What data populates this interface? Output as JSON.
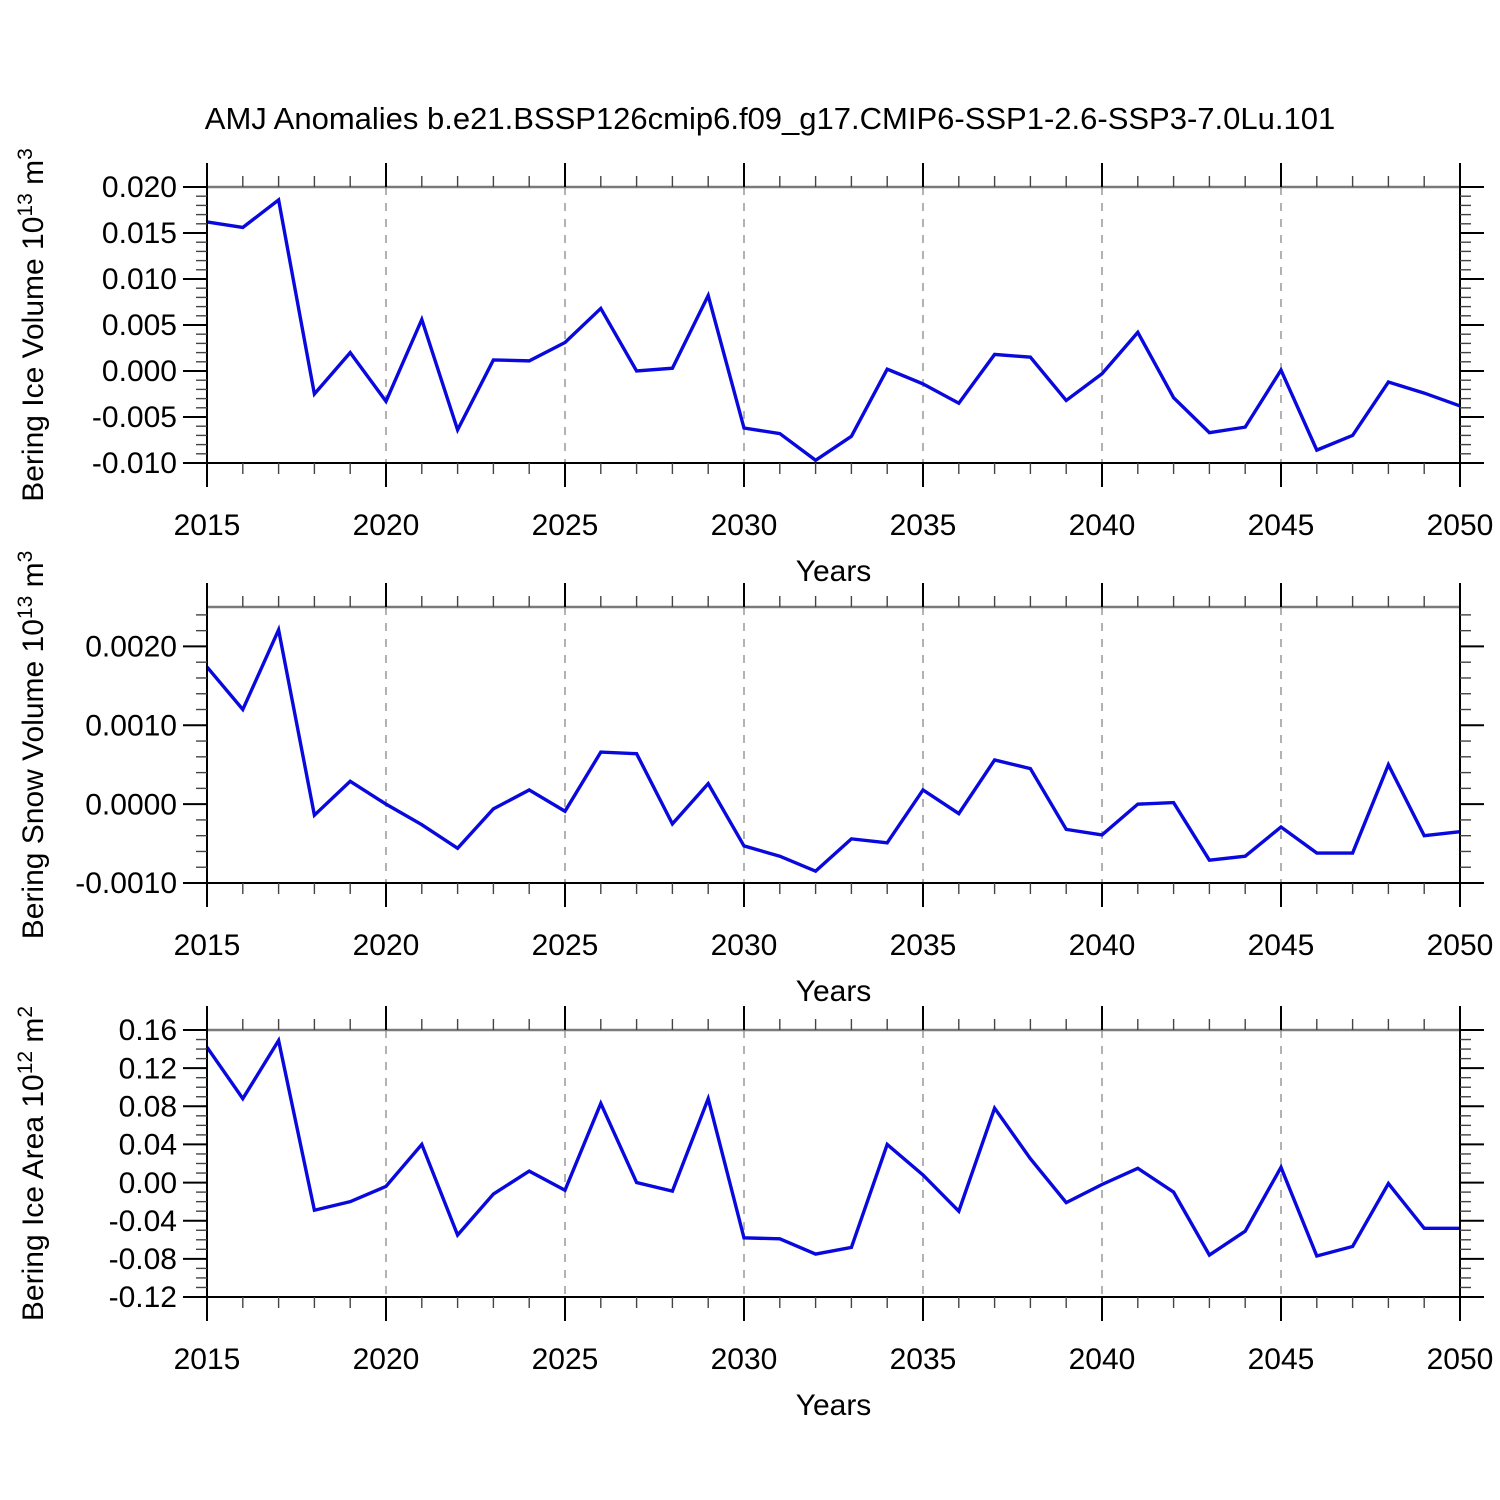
{
  "page": {
    "title": "AMJ Anomalies b.e21.BSSP126cmip6.f09_g17.CMIP6-SSP1-2.6-SSP3-7.0Lu.101",
    "background": "#ffffff"
  },
  "style": {
    "line_color": "#0909dd",
    "grid_color": "#999999",
    "frame_color": "#000000",
    "frame_top_color": "#7a7a7a",
    "minor_tick_color": "#444444",
    "text_color": "#000000"
  },
  "chart_data": [
    {
      "type": "line",
      "name": "bering-ice-volume",
      "ylabel_parts": [
        {
          "t": "Bering Ice Volume 10"
        },
        {
          "t": "13",
          "sup": true
        },
        {
          "t": " m"
        },
        {
          "t": "3",
          "sup": true
        }
      ],
      "xlabel": "Years",
      "xlim": [
        2015,
        2050
      ],
      "ylim": [
        -0.01,
        0.02
      ],
      "yticks": [
        0.02,
        0.015,
        0.01,
        0.005,
        0.0,
        -0.005,
        -0.01
      ],
      "ytick_labels": [
        "0.020",
        "0.015",
        "0.010",
        "0.005",
        "0.000",
        "-0.005",
        "-0.010"
      ],
      "yminor_step": 0.001,
      "xticks_major": [
        2015,
        2020,
        2025,
        2030,
        2035,
        2040,
        2045,
        2050
      ],
      "xtick_labels": [
        "2015",
        "2020",
        "2025",
        "2030",
        "2035",
        "2040",
        "2045",
        "2050"
      ],
      "xminor_step": 1,
      "grid_x": [
        2020,
        2025,
        2030,
        2035,
        2040,
        2045
      ],
      "x": [
        2015,
        2016,
        2017,
        2018,
        2019,
        2020,
        2021,
        2022,
        2023,
        2024,
        2025,
        2026,
        2027,
        2028,
        2029,
        2030,
        2031,
        2032,
        2033,
        2034,
        2035,
        2036,
        2037,
        2038,
        2039,
        2040,
        2041,
        2042,
        2043,
        2044,
        2045,
        2046,
        2047,
        2048,
        2049,
        2050
      ],
      "values": [
        0.0162,
        0.0156,
        0.0186,
        -0.0025,
        0.002,
        -0.0033,
        0.0056,
        -0.0064,
        0.0012,
        0.0011,
        0.0031,
        0.0068,
        0.0,
        0.0003,
        0.0082,
        -0.0062,
        -0.0068,
        -0.0097,
        -0.0071,
        0.0002,
        -0.0014,
        -0.0035,
        0.0018,
        0.0015,
        -0.0032,
        -0.0003,
        0.0042,
        -0.0029,
        -0.0067,
        -0.0061,
        0.0001,
        -0.0086,
        -0.007,
        -0.0012,
        -0.0024,
        -0.0038
      ]
    },
    {
      "type": "line",
      "name": "bering-snow-volume",
      "ylabel_parts": [
        {
          "t": "Bering Snow Volume 10"
        },
        {
          "t": "13",
          "sup": true
        },
        {
          "t": " m"
        },
        {
          "t": "3",
          "sup": true
        }
      ],
      "xlabel": "Years",
      "xlim": [
        2015,
        2050
      ],
      "ylim": [
        -0.001,
        0.0025
      ],
      "yticks": [
        0.002,
        0.001,
        0.0,
        -0.001
      ],
      "ytick_labels": [
        "0.0020",
        "0.0010",
        "0.0000",
        "-0.0010"
      ],
      "yminor_step": 0.0002,
      "xticks_major": [
        2015,
        2020,
        2025,
        2030,
        2035,
        2040,
        2045,
        2050
      ],
      "xtick_labels": [
        "2015",
        "2020",
        "2025",
        "2030",
        "2035",
        "2040",
        "2045",
        "2050"
      ],
      "xminor_step": 1,
      "grid_x": [
        2020,
        2025,
        2030,
        2035,
        2040,
        2045
      ],
      "x": [
        2015,
        2016,
        2017,
        2018,
        2019,
        2020,
        2021,
        2022,
        2023,
        2024,
        2025,
        2026,
        2027,
        2028,
        2029,
        2030,
        2031,
        2032,
        2033,
        2034,
        2035,
        2036,
        2037,
        2038,
        2039,
        2040,
        2041,
        2042,
        2043,
        2044,
        2045,
        2046,
        2047,
        2048,
        2049,
        2050
      ],
      "values": [
        0.00174,
        0.0012,
        0.00221,
        -0.00014,
        0.00029,
        0.0,
        -0.00026,
        -0.00056,
        -6e-05,
        0.00018,
        -9e-05,
        0.00066,
        0.00064,
        -0.00025,
        0.00026,
        -0.00053,
        -0.00066,
        -0.00085,
        -0.00044,
        -0.00049,
        0.00018,
        -0.00012,
        0.00056,
        0.00045,
        -0.00032,
        -0.00039,
        0.0,
        2e-05,
        -0.00071,
        -0.00066,
        -0.00029,
        -0.00062,
        -0.00062,
        0.0005,
        -0.0004,
        -0.00035
      ]
    },
    {
      "type": "line",
      "name": "bering-ice-area",
      "ylabel_parts": [
        {
          "t": "Bering Ice Area 10"
        },
        {
          "t": "12",
          "sup": true
        },
        {
          "t": " m"
        },
        {
          "t": "2",
          "sup": true
        }
      ],
      "xlabel": "Years",
      "xlim": [
        2015,
        2050
      ],
      "ylim": [
        -0.12,
        0.16
      ],
      "yticks": [
        0.16,
        0.12,
        0.08,
        0.04,
        0.0,
        -0.04,
        -0.08,
        -0.12
      ],
      "ytick_labels": [
        "0.16",
        "0.12",
        "0.08",
        "0.04",
        "0.00",
        "-0.04",
        "-0.08",
        "-0.12"
      ],
      "yminor_step": 0.01,
      "xticks_major": [
        2015,
        2020,
        2025,
        2030,
        2035,
        2040,
        2045,
        2050
      ],
      "xtick_labels": [
        "2015",
        "2020",
        "2025",
        "2030",
        "2035",
        "2040",
        "2045",
        "2050"
      ],
      "xminor_step": 1,
      "grid_x": [
        2020,
        2025,
        2030,
        2035,
        2040,
        2045
      ],
      "x": [
        2015,
        2016,
        2017,
        2018,
        2019,
        2020,
        2021,
        2022,
        2023,
        2024,
        2025,
        2026,
        2027,
        2028,
        2029,
        2030,
        2031,
        2032,
        2033,
        2034,
        2035,
        2036,
        2037,
        2038,
        2039,
        2040,
        2041,
        2042,
        2043,
        2044,
        2045,
        2046,
        2047,
        2048,
        2049,
        2050
      ],
      "values": [
        0.142,
        0.088,
        0.149,
        -0.029,
        -0.02,
        -0.004,
        0.04,
        -0.055,
        -0.012,
        0.012,
        -0.008,
        0.083,
        0.0,
        -0.009,
        0.088,
        -0.058,
        -0.059,
        -0.075,
        -0.068,
        0.04,
        0.008,
        -0.03,
        0.078,
        0.025,
        -0.021,
        -0.002,
        0.015,
        -0.01,
        -0.076,
        -0.051,
        0.016,
        -0.077,
        -0.067,
        -0.001,
        -0.048,
        -0.048
      ]
    }
  ]
}
